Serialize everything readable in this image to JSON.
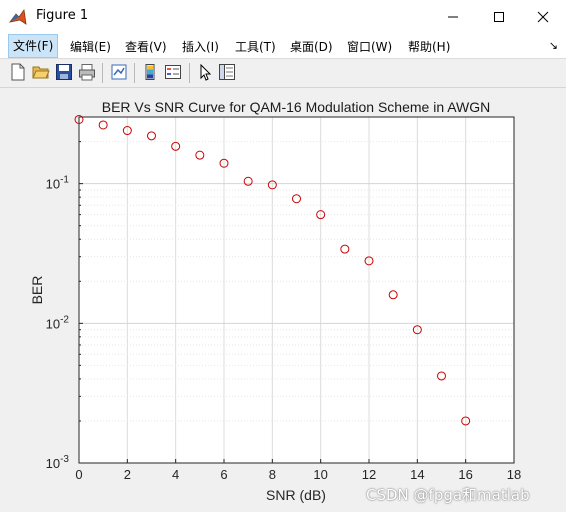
{
  "window": {
    "title": "Figure 1"
  },
  "menu": [
    "文件(F)",
    "编辑(E)",
    "查看(V)",
    "插入(I)",
    "工具(T)",
    "桌面(D)",
    "窗口(W)",
    "帮助(H)"
  ],
  "toolbar": [
    "new-figure-icon",
    "open-file-icon",
    "save-icon",
    "print-icon",
    "link-plot-icon",
    "colorbar-icon",
    "legend-icon",
    "pointer-icon",
    "property-editor-icon"
  ],
  "watermark": "CSDN @fpga和matlab",
  "chart_data": {
    "type": "scatter",
    "title": "BER Vs SNR Curve for QAM-16 Modulation Scheme in AWGN",
    "xlabel": "SNR (dB)",
    "ylabel": "BER",
    "xlim": [
      0,
      18
    ],
    "ylim": [
      0.001,
      0.3
    ],
    "yscale": "log",
    "grid": true,
    "x_ticks": [
      "0",
      "2",
      "4",
      "6",
      "8",
      "10",
      "12",
      "14",
      "16",
      "18"
    ],
    "y_ticks": [
      {
        "base": "10",
        "exp": "-1",
        "value": 0.1
      },
      {
        "base": "10",
        "exp": "-2",
        "value": 0.01
      },
      {
        "base": "10",
        "exp": "-3",
        "value": 0.001
      }
    ],
    "marker": "circle",
    "marker_color": "#cc0000",
    "points": [
      {
        "x": 0,
        "y": 0.288
      },
      {
        "x": 1,
        "y": 0.263
      },
      {
        "x": 2,
        "y": 0.24
      },
      {
        "x": 3,
        "y": 0.22
      },
      {
        "x": 4,
        "y": 0.185
      },
      {
        "x": 5,
        "y": 0.16
      },
      {
        "x": 6,
        "y": 0.14
      },
      {
        "x": 7,
        "y": 0.104
      },
      {
        "x": 8,
        "y": 0.098
      },
      {
        "x": 9,
        "y": 0.078
      },
      {
        "x": 10,
        "y": 0.06
      },
      {
        "x": 11,
        "y": 0.034
      },
      {
        "x": 12,
        "y": 0.028
      },
      {
        "x": 13,
        "y": 0.016
      },
      {
        "x": 14,
        "y": 0.009
      },
      {
        "x": 15,
        "y": 0.0042
      },
      {
        "x": 16,
        "y": 0.002
      }
    ]
  }
}
